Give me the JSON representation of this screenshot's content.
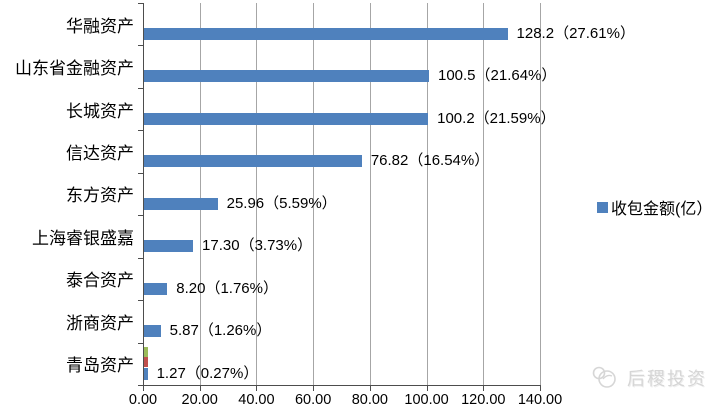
{
  "chart_data": {
    "type": "bar",
    "orientation": "horizontal",
    "title": "",
    "categories": [
      "华融资产",
      "山东省金融资产",
      "长城资产",
      "信达资产",
      "东方资产",
      "上海睿银盛嘉",
      "泰合资产",
      "浙商资产",
      "青岛资产"
    ],
    "series": [
      {
        "name": "收包金额(亿）",
        "color": "#4F81BD",
        "values": [
          128.2,
          100.5,
          100.2,
          76.82,
          25.96,
          17.3,
          8.2,
          5.87,
          1.27
        ]
      }
    ],
    "value_labels": [
      "128.2（27.61%）",
      "100.5（21.64%）",
      "100.2（21.59%）",
      "76.82（16.54%）",
      "25.96（5.59%）",
      "17.30（3.73%）",
      "8.20（1.76%）",
      "5.87（1.26%）",
      "1.27（0.27%）"
    ],
    "xlim": [
      0,
      140
    ],
    "x_tick_step": 20,
    "x_tick_labels": [
      "0.00",
      "20.00",
      "40.00",
      "60.00",
      "80.00",
      "100.00",
      "120.00",
      "140.00"
    ],
    "grid": "vertical major gridlines every 20",
    "legend_position": "right",
    "extra_marks": [
      {
        "category": "青岛资产",
        "color": "#9BBB59",
        "value": 1.3
      },
      {
        "category": "青岛资产",
        "color": "#C0504D",
        "value": 1.3
      }
    ]
  },
  "legend": {
    "label": "收包金额(亿）"
  },
  "watermark": {
    "text": "后稷投资"
  },
  "colors": {
    "bar": "#4F81BD",
    "extra_green": "#9BBB59",
    "extra_red": "#C0504D",
    "grid": "#A6A6A6",
    "axis": "#4D4D4D",
    "watermark": "#D6D6D6"
  }
}
